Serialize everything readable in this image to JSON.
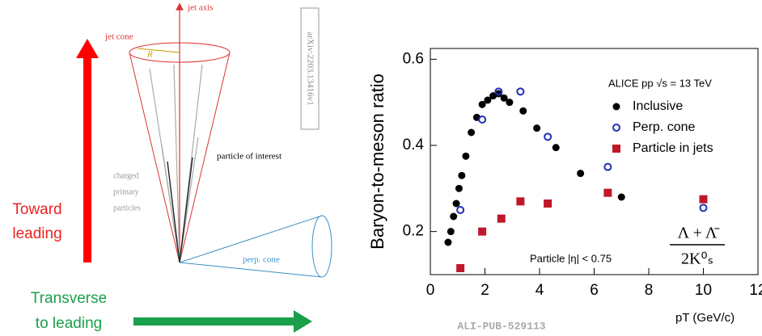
{
  "diagram": {
    "jet_axis": "jet axis",
    "jet_cone": "jet cone",
    "radius": "R",
    "arxiv": "arXiv:2203.13416v1",
    "particle_of_interest": "particle of interest",
    "charged_primary": [
      "charged",
      "primary",
      "particles"
    ],
    "perp_cone": "perp. cone",
    "toward": [
      "Toward",
      "leading"
    ],
    "transverse": [
      "Transverse",
      "to leading"
    ]
  },
  "chart_data": {
    "type": "scatter",
    "y_label": "Baryon-to-meson ratio",
    "x_label": "pT (GeV/c)",
    "xlim": [
      0,
      12
    ],
    "xticks": [
      0,
      2,
      4,
      6,
      8,
      10,
      12
    ],
    "ylim": [
      0.1,
      0.625
    ],
    "yticks": [
      0.2,
      0.4,
      0.6
    ],
    "annotations": [
      "ALICE pp √s = 13 TeV",
      "Particle |η| < 0.75",
      "Λ + Λ̄",
      "2K⁰ₛ",
      "ALI-PUB-529113"
    ],
    "legend": "upper right",
    "series": [
      {
        "name": "Inclusive",
        "color": "#000000",
        "marker": "filled",
        "x": [
          0.65,
          0.75,
          0.85,
          0.95,
          1.05,
          1.15,
          1.3,
          1.5,
          1.7,
          1.9,
          2.1,
          2.3,
          2.5,
          2.7,
          2.9,
          3.4,
          3.9,
          4.6,
          5.5,
          7.0
        ],
        "values": [
          0.175,
          0.2,
          0.235,
          0.265,
          0.3,
          0.33,
          0.375,
          0.43,
          0.465,
          0.495,
          0.505,
          0.515,
          0.52,
          0.51,
          0.5,
          0.48,
          0.44,
          0.395,
          0.335,
          0.28
        ]
      },
      {
        "name": "Perp. cone",
        "color": "#1f2fb5",
        "marker": "open",
        "x": [
          1.1,
          1.9,
          2.5,
          3.3,
          4.3,
          6.5,
          10.0
        ],
        "values": [
          0.25,
          0.46,
          0.525,
          0.525,
          0.42,
          0.35,
          0.255
        ]
      },
      {
        "name": "Particle in jets",
        "color": "#c0182b",
        "marker": "square",
        "x": [
          1.1,
          1.9,
          2.6,
          3.3,
          4.3,
          6.5,
          10.0
        ],
        "values": [
          0.115,
          0.2,
          0.23,
          0.27,
          0.265,
          0.29,
          0.275
        ]
      }
    ]
  }
}
